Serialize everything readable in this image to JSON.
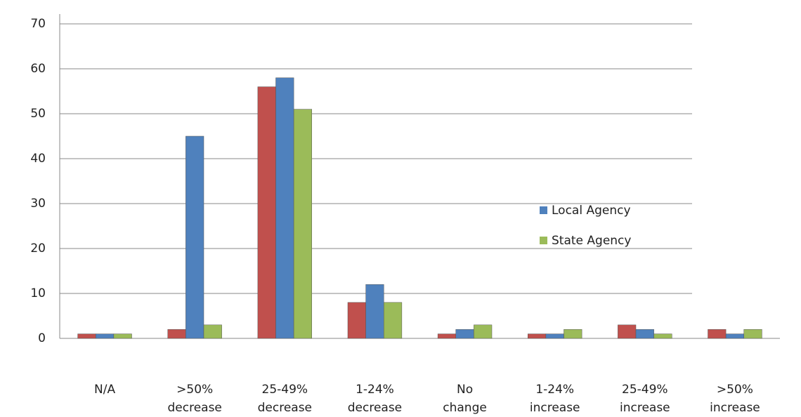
{
  "chart_data": {
    "type": "bar",
    "categories": [
      "N/A",
      ">50% decrease",
      "25-49% decrease",
      "1-24% decrease",
      "No change",
      "1-24% increase",
      "25-49% increase",
      ">50% increase"
    ],
    "series": [
      {
        "color": "#c0504d",
        "values": [
          1,
          2,
          56,
          8,
          1,
          1,
          3,
          2
        ]
      },
      {
        "name": "Local Agency",
        "color": "#4f81bd",
        "values": [
          1,
          45,
          58,
          12,
          2,
          1,
          2,
          1
        ]
      },
      {
        "name": "State Agency",
        "color": "#9bbb59",
        "values": [
          1,
          3,
          51,
          8,
          3,
          2,
          1,
          2
        ]
      }
    ],
    "ylim": [
      0,
      70
    ],
    "yticks": [
      0,
      10,
      20,
      30,
      40,
      50,
      60,
      70
    ],
    "grid": true
  }
}
